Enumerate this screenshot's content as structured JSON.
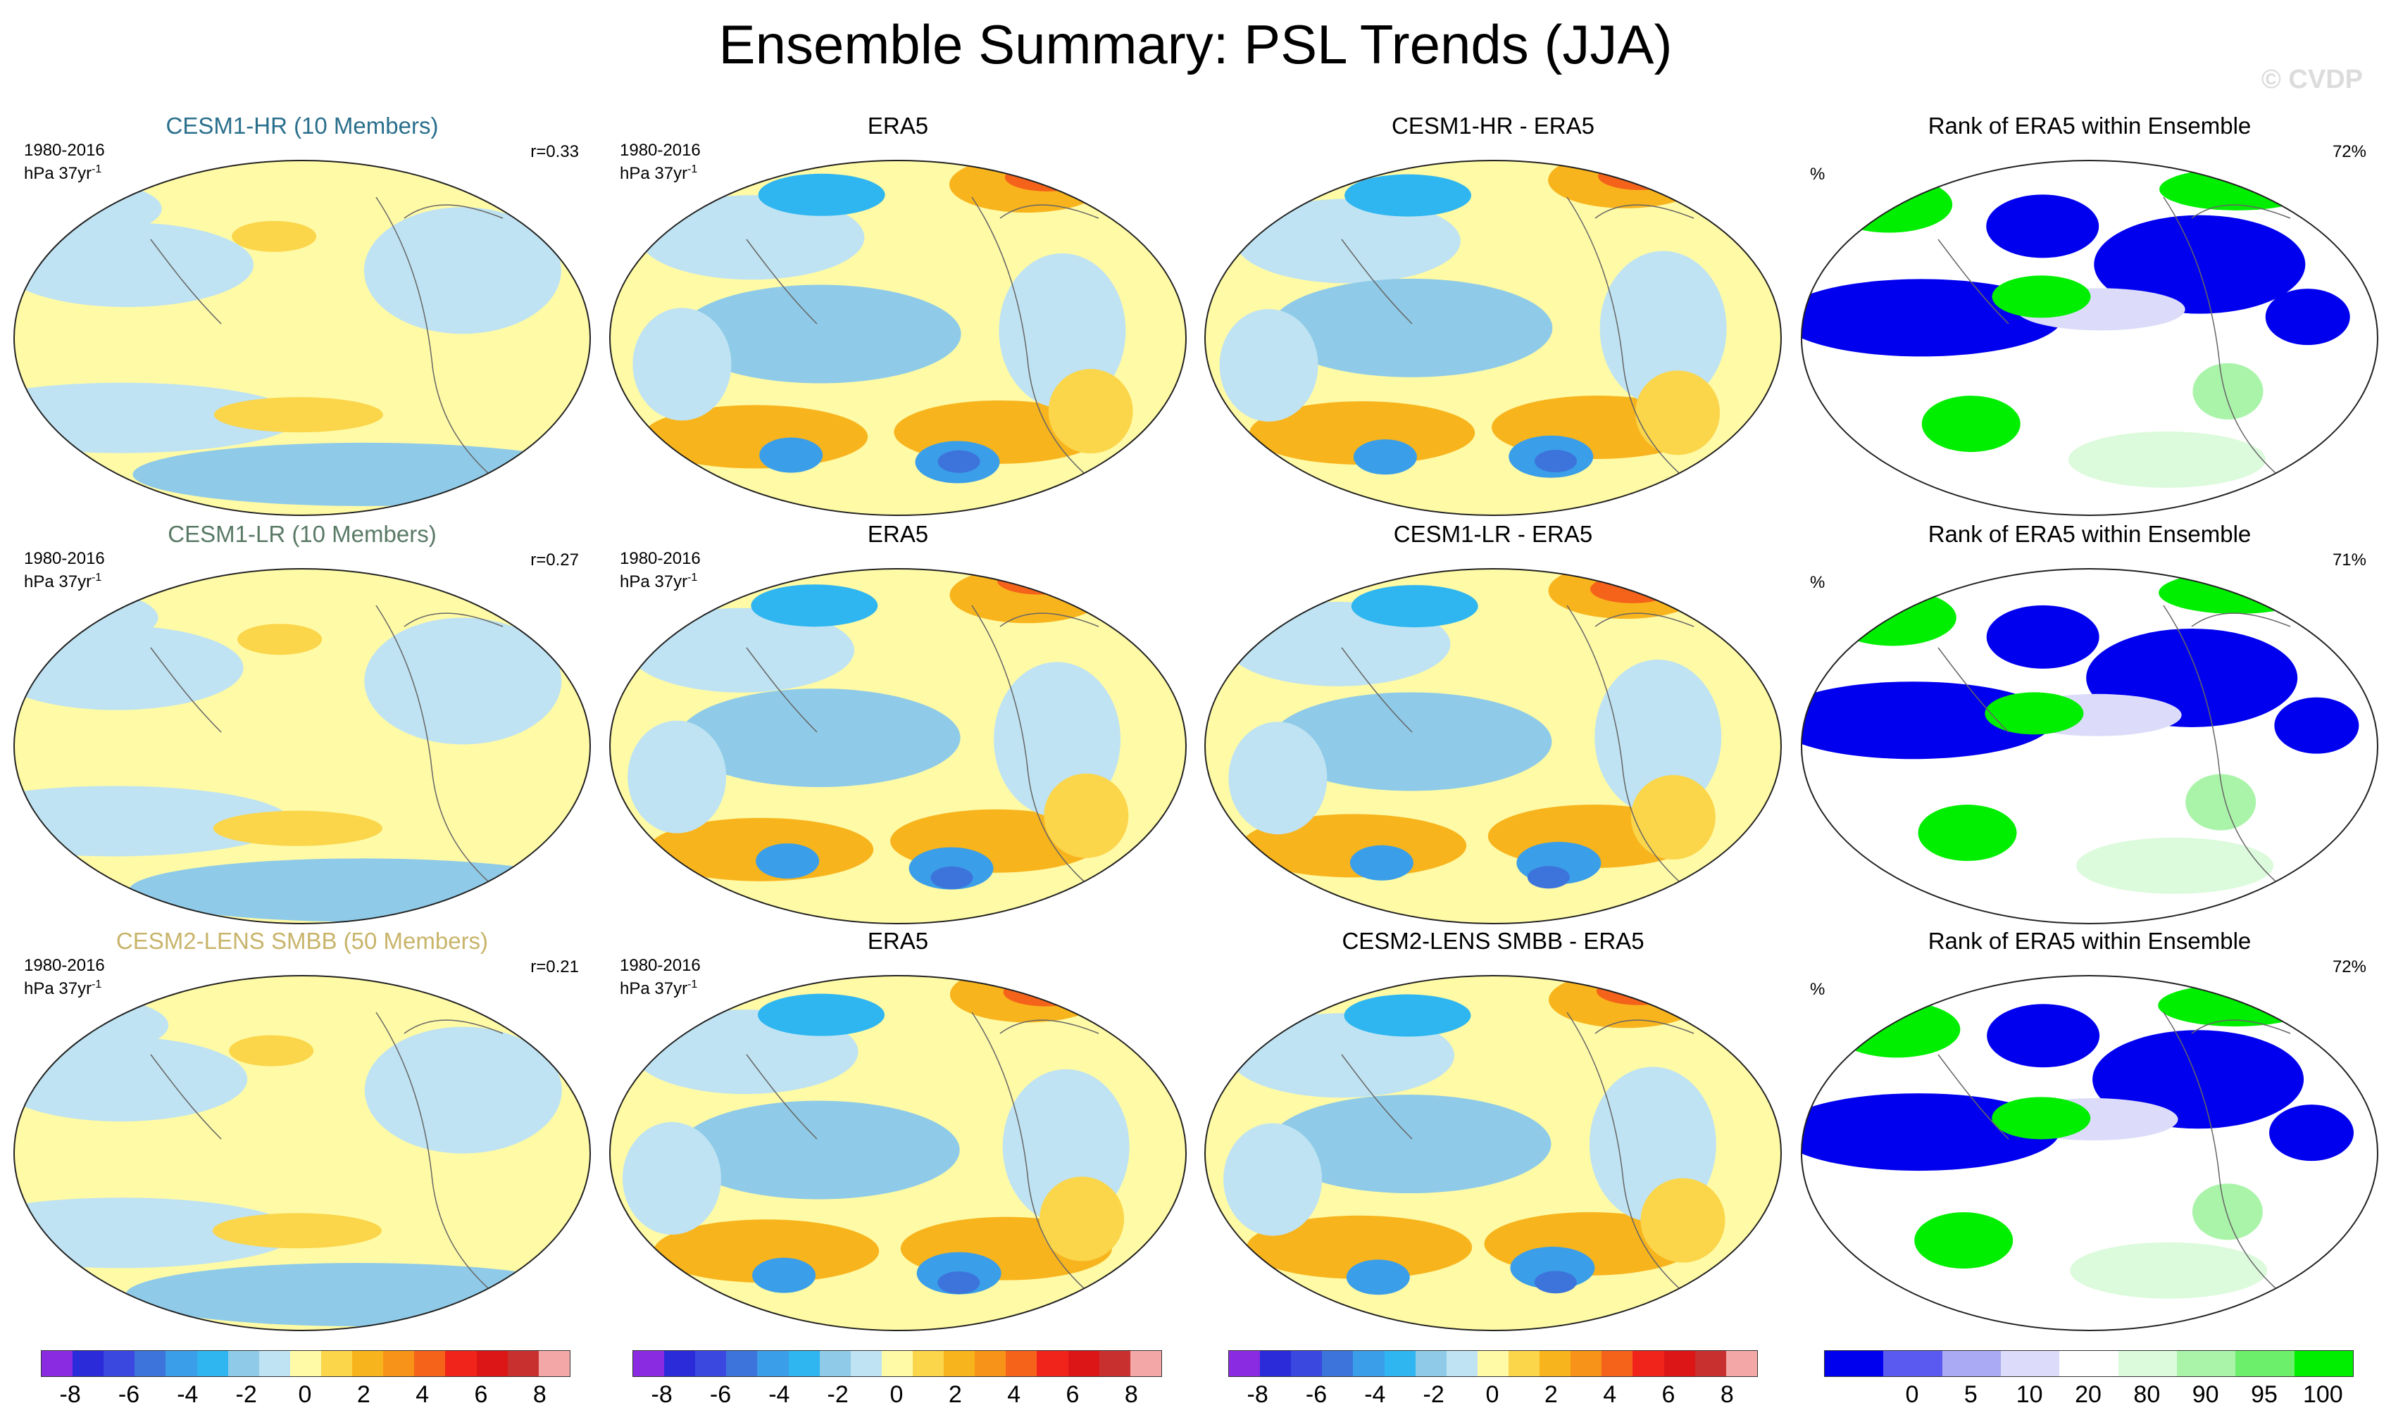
{
  "title": "Ensemble Summary: PSL Trends (JJA)",
  "watermark": "© CVDP",
  "rows": [
    {
      "model": {
        "title": "CESM1-HR (10 Members)",
        "title_color": "#2a6f8c",
        "period": "1980-2016",
        "units": "hPa 37yr",
        "units_sup": "-1",
        "r": "r=0.33"
      },
      "obs": {
        "title": "ERA5",
        "period": "1980-2016",
        "units": "hPa 37yr",
        "units_sup": "-1"
      },
      "diff": {
        "title": "CESM1-HR - ERA5"
      },
      "rank": {
        "title": "Rank of ERA5 within Ensemble",
        "unit": "%",
        "pct": "72%"
      }
    },
    {
      "model": {
        "title": "CESM1-LR (10 Members)",
        "title_color": "#5a7a66",
        "period": "1980-2016",
        "units": "hPa 37yr",
        "units_sup": "-1",
        "r": "r=0.27"
      },
      "obs": {
        "title": "ERA5",
        "period": "1980-2016",
        "units": "hPa 37yr",
        "units_sup": "-1"
      },
      "diff": {
        "title": "CESM1-LR - ERA5"
      },
      "rank": {
        "title": "Rank of ERA5 within Ensemble",
        "unit": "%",
        "pct": "71%"
      }
    },
    {
      "model": {
        "title": "CESM2-LENS SMBB (50 Members)",
        "title_color": "#c8b46a",
        "period": "1980-2016",
        "units": "hPa 37yr",
        "units_sup": "-1",
        "r": "r=0.21"
      },
      "obs": {
        "title": "ERA5",
        "period": "1980-2016",
        "units": "hPa 37yr",
        "units_sup": "-1"
      },
      "diff": {
        "title": "CESM2-LENS SMBB - ERA5"
      },
      "rank": {
        "title": "Rank of ERA5 within Ensemble",
        "unit": "%",
        "pct": "72%"
      }
    }
  ],
  "chart_data": {
    "type": "heatmap",
    "description_levels": "PSL trend contour levels",
    "trend_colorbar": {
      "colors": [
        "#8a2be2",
        "#2b2bd9",
        "#3a48e0",
        "#3c74dc",
        "#3b9ee8",
        "#2fb6f0",
        "#8fcbe8",
        "#bfe3f2",
        "#fffaa6",
        "#fbd54a",
        "#f8b41d",
        "#f79318",
        "#f5631b",
        "#f0241a",
        "#dc1616",
        "#c8302f",
        "#f4a7a7"
      ],
      "tick_labels": [
        "-8",
        "-6",
        "-4",
        "-2",
        "0",
        "2",
        "4",
        "6",
        "8"
      ],
      "tick_values": [
        -8,
        -6,
        -4,
        -2,
        0,
        2,
        4,
        6,
        8
      ],
      "range": [
        -9,
        9
      ]
    },
    "rank_colorbar": {
      "colors": [
        "#0000ee",
        "#5a5af0",
        "#aaaaf4",
        "#dcdcfa",
        "#ffffff",
        "#dcfadc",
        "#aaf4aa",
        "#6cf06c",
        "#00ee00"
      ],
      "tick_labels": [
        "0",
        "5",
        "10",
        "20",
        "80",
        "90",
        "95",
        "100"
      ],
      "boundaries": [
        0,
        5,
        10,
        20,
        80,
        90,
        95,
        100
      ]
    }
  }
}
